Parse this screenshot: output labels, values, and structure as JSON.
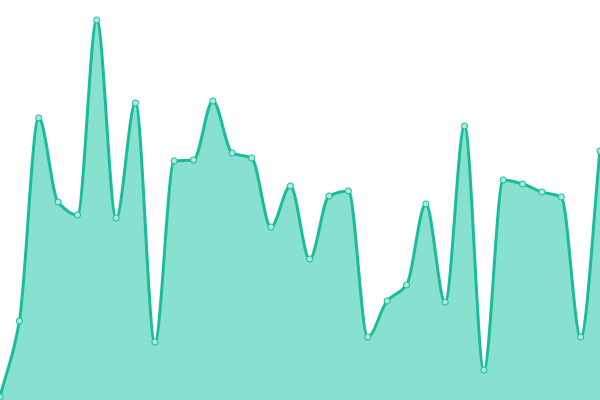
{
  "chart_data": {
    "type": "area",
    "title": "",
    "xlabel": "",
    "ylabel": "",
    "x": [
      0,
      1,
      2,
      3,
      4,
      5,
      6,
      7,
      8,
      9,
      10,
      11,
      12,
      13,
      14,
      15,
      16,
      17,
      18,
      19,
      20,
      21,
      22,
      23,
      24,
      25,
      26,
      27,
      28,
      29,
      30,
      31
    ],
    "values": [
      3,
      79,
      282,
      198,
      185,
      380,
      182,
      297,
      58,
      239,
      240,
      299,
      247,
      242,
      173,
      214,
      141,
      204,
      209,
      63,
      99,
      115,
      196,
      98,
      274,
      30,
      220,
      216,
      208,
      203,
      63,
      249
    ],
    "ylim": [
      0,
      400
    ],
    "grid": false,
    "axes_visible": false,
    "colors": {
      "line": "#1abc9c",
      "fill": "#88e0cf",
      "marker_fill": "#a8ece0"
    }
  }
}
